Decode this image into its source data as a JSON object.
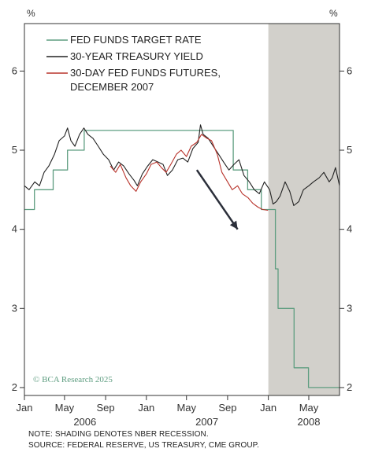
{
  "chart_data": {
    "type": "line",
    "unit_left": "%",
    "unit_right": "%",
    "ylim": [
      1.9,
      6.6
    ],
    "y_ticks": [
      2,
      3,
      4,
      5,
      6
    ],
    "x_tick_labels": [
      "Jan",
      "May",
      "Sep",
      "Jan",
      "May",
      "Sep",
      "Jan",
      "May"
    ],
    "x_tick_dates": [
      "2006-01",
      "2006-05",
      "2006-09",
      "2007-01",
      "2007-05",
      "2007-09",
      "2008-01",
      "2008-05"
    ],
    "x_year_labels": [
      {
        "label": "2006",
        "date": "2006-07"
      },
      {
        "label": "2007",
        "date": "2007-07"
      },
      {
        "label": "2008",
        "date": "2008-05"
      }
    ],
    "recession_shading": {
      "start": "2008-01",
      "end": "2008-08"
    },
    "annotation_arrow": {
      "from": {
        "date": "2007-06",
        "value": 4.75
      },
      "to": {
        "date": "2007-10",
        "value": 4.0
      }
    },
    "legend": [
      {
        "label": "FED FUNDS TARGET RATE",
        "color": "#5e9d80"
      },
      {
        "label": "30-YEAR TREASURY YIELD",
        "color": "#222222"
      },
      {
        "label_lines": [
          "30-DAY FED FUNDS FUTURES,",
          "DECEMBER 2007"
        ],
        "color": "#b8332b"
      }
    ],
    "series": [
      {
        "name": "FED FUNDS TARGET RATE",
        "color": "#5e9d80",
        "step": true,
        "points": [
          [
            "2006-01-01",
            4.25
          ],
          [
            "2006-01-31",
            4.5
          ],
          [
            "2006-03-28",
            4.75
          ],
          [
            "2006-05-10",
            5.0
          ],
          [
            "2006-06-29",
            5.25
          ],
          [
            "2007-09-18",
            4.75
          ],
          [
            "2007-10-31",
            4.5
          ],
          [
            "2007-12-11",
            4.25
          ],
          [
            "2008-01-22",
            3.5
          ],
          [
            "2008-01-30",
            3.0
          ],
          [
            "2008-03-18",
            2.25
          ],
          [
            "2008-04-30",
            2.0
          ],
          [
            "2008-08-01",
            2.0
          ]
        ]
      },
      {
        "name": "30-YEAR TREASURY YIELD",
        "color": "#222222",
        "points": [
          [
            "2006-01-01",
            4.55
          ],
          [
            "2006-01-15",
            4.5
          ],
          [
            "2006-02-01",
            4.6
          ],
          [
            "2006-02-15",
            4.55
          ],
          [
            "2006-03-01",
            4.72
          ],
          [
            "2006-03-15",
            4.8
          ],
          [
            "2006-04-01",
            4.95
          ],
          [
            "2006-04-15",
            5.12
          ],
          [
            "2006-05-01",
            5.18
          ],
          [
            "2006-05-10",
            5.28
          ],
          [
            "2006-05-20",
            5.12
          ],
          [
            "2006-06-01",
            5.05
          ],
          [
            "2006-06-15",
            5.2
          ],
          [
            "2006-06-28",
            5.28
          ],
          [
            "2006-07-10",
            5.2
          ],
          [
            "2006-07-25",
            5.15
          ],
          [
            "2006-08-10",
            5.05
          ],
          [
            "2006-08-25",
            4.95
          ],
          [
            "2006-09-10",
            4.88
          ],
          [
            "2006-09-25",
            4.75
          ],
          [
            "2006-10-10",
            4.85
          ],
          [
            "2006-10-25",
            4.8
          ],
          [
            "2006-11-10",
            4.7
          ],
          [
            "2006-11-25",
            4.62
          ],
          [
            "2006-12-05",
            4.55
          ],
          [
            "2006-12-20",
            4.7
          ],
          [
            "2007-01-05",
            4.8
          ],
          [
            "2007-01-20",
            4.88
          ],
          [
            "2007-02-05",
            4.85
          ],
          [
            "2007-02-20",
            4.82
          ],
          [
            "2007-03-05",
            4.68
          ],
          [
            "2007-03-20",
            4.75
          ],
          [
            "2007-04-05",
            4.88
          ],
          [
            "2007-04-20",
            4.9
          ],
          [
            "2007-05-05",
            4.85
          ],
          [
            "2007-05-20",
            5.02
          ],
          [
            "2007-06-05",
            5.1
          ],
          [
            "2007-06-12",
            5.32
          ],
          [
            "2007-06-20",
            5.2
          ],
          [
            "2007-07-05",
            5.15
          ],
          [
            "2007-07-20",
            5.05
          ],
          [
            "2007-08-05",
            4.95
          ],
          [
            "2007-08-20",
            4.85
          ],
          [
            "2007-09-05",
            4.75
          ],
          [
            "2007-09-20",
            4.82
          ],
          [
            "2007-10-05",
            4.88
          ],
          [
            "2007-10-20",
            4.68
          ],
          [
            "2007-11-05",
            4.6
          ],
          [
            "2007-11-20",
            4.5
          ],
          [
            "2007-12-05",
            4.45
          ],
          [
            "2007-12-20",
            4.6
          ],
          [
            "2008-01-05",
            4.5
          ],
          [
            "2008-01-15",
            4.32
          ],
          [
            "2008-01-25",
            4.35
          ],
          [
            "2008-02-05",
            4.42
          ],
          [
            "2008-02-20",
            4.6
          ],
          [
            "2008-03-05",
            4.48
          ],
          [
            "2008-03-17",
            4.3
          ],
          [
            "2008-04-01",
            4.35
          ],
          [
            "2008-04-15",
            4.5
          ],
          [
            "2008-05-01",
            4.55
          ],
          [
            "2008-05-15",
            4.6
          ],
          [
            "2008-06-01",
            4.65
          ],
          [
            "2008-06-15",
            4.72
          ],
          [
            "2008-07-01",
            4.6
          ],
          [
            "2008-07-10",
            4.65
          ],
          [
            "2008-07-20",
            4.78
          ],
          [
            "2008-08-01",
            4.55
          ]
        ]
      },
      {
        "name": "30-DAY FED FUNDS FUTURES, DECEMBER 2007",
        "color": "#b8332b",
        "points": [
          [
            "2006-09-15",
            4.8
          ],
          [
            "2006-10-01",
            4.72
          ],
          [
            "2006-10-15",
            4.82
          ],
          [
            "2006-11-01",
            4.65
          ],
          [
            "2006-11-15",
            4.55
          ],
          [
            "2006-12-01",
            4.48
          ],
          [
            "2006-12-15",
            4.6
          ],
          [
            "2007-01-01",
            4.7
          ],
          [
            "2007-01-15",
            4.82
          ],
          [
            "2007-02-01",
            4.85
          ],
          [
            "2007-02-15",
            4.78
          ],
          [
            "2007-03-01",
            4.72
          ],
          [
            "2007-03-15",
            4.82
          ],
          [
            "2007-04-01",
            4.95
          ],
          [
            "2007-04-15",
            5.0
          ],
          [
            "2007-05-01",
            4.92
          ],
          [
            "2007-05-15",
            5.05
          ],
          [
            "2007-06-01",
            5.1
          ],
          [
            "2007-06-15",
            5.2
          ],
          [
            "2007-07-01",
            5.15
          ],
          [
            "2007-07-15",
            5.12
          ],
          [
            "2007-08-01",
            4.95
          ],
          [
            "2007-08-15",
            4.72
          ],
          [
            "2007-09-01",
            4.6
          ],
          [
            "2007-09-15",
            4.5
          ],
          [
            "2007-10-01",
            4.55
          ],
          [
            "2007-10-15",
            4.45
          ],
          [
            "2007-11-01",
            4.4
          ],
          [
            "2007-11-15",
            4.33
          ],
          [
            "2007-12-01",
            4.28
          ],
          [
            "2007-12-15",
            4.25
          ],
          [
            "2007-12-31",
            4.24
          ]
        ]
      }
    ]
  },
  "watermark": "© BCA Research 2025",
  "footer": {
    "note": "NOTE: SHADING DENOTES NBER RECESSION.",
    "source": "SOURCE: FEDERAL RESERVE, US TREASURY, CME GROUP."
  }
}
